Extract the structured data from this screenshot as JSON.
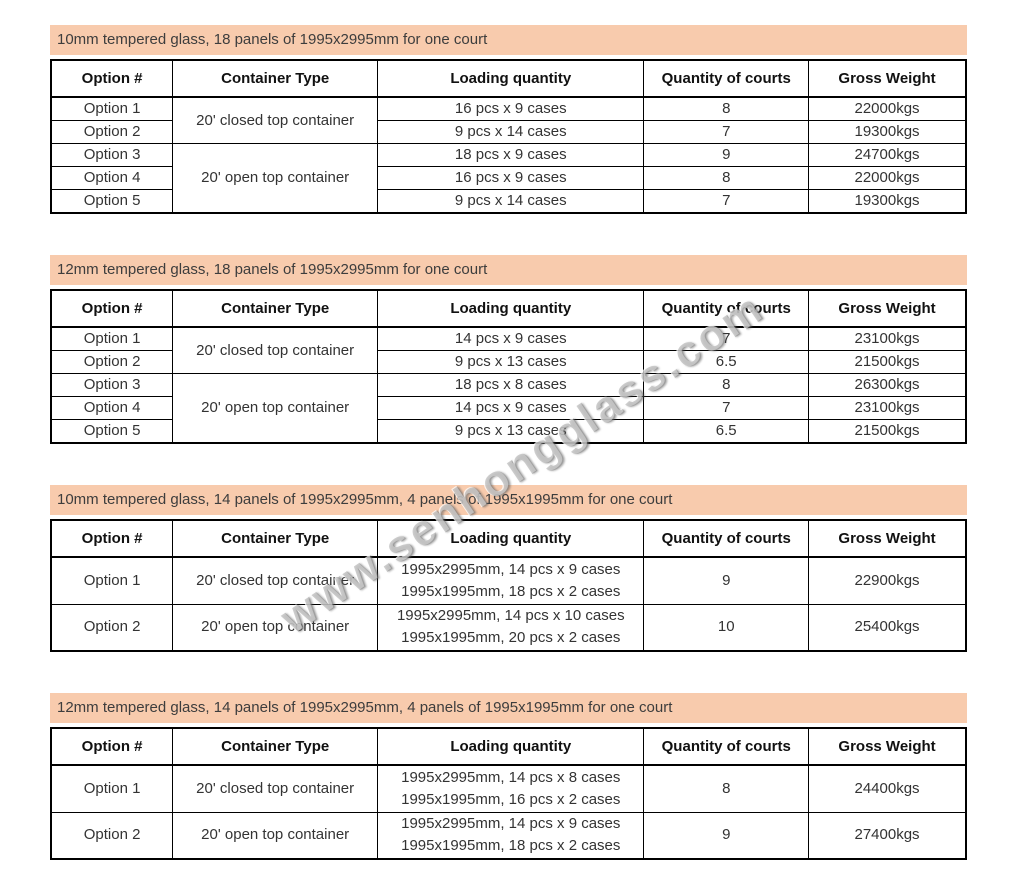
{
  "colors": {
    "banner_bg": "#F8CBAD",
    "border": "#000000",
    "body_text": "#333333",
    "banner_text": "#3d3d3d"
  },
  "watermark": {
    "text": "www.senhongglass.com"
  },
  "columns": [
    "Option #",
    "Container Type",
    "Loading quantity",
    "Quantity of courts",
    "Gross Weight"
  ],
  "sections": [
    {
      "title": "10mm tempered glass, 18 panels of 1995x2995mm for one court",
      "rows": [
        {
          "option": "Option 1",
          "container": "20' closed top container",
          "container_rowspan": 2,
          "loading": [
            "16 pcs x 9 cases"
          ],
          "courts": "8",
          "weight": "22000kgs"
        },
        {
          "option": "Option 2",
          "loading": [
            "9 pcs x 14 cases"
          ],
          "courts": "7",
          "weight": "19300kgs"
        },
        {
          "option": "Option 3",
          "container": "20' open top container",
          "container_rowspan": 3,
          "loading": [
            "18 pcs x 9 cases"
          ],
          "courts": "9",
          "weight": "24700kgs"
        },
        {
          "option": "Option 4",
          "loading": [
            "16 pcs x 9 cases"
          ],
          "courts": "8",
          "weight": "22000kgs"
        },
        {
          "option": "Option 5",
          "loading": [
            "9 pcs x 14 cases"
          ],
          "courts": "7",
          "weight": "19300kgs"
        }
      ]
    },
    {
      "title": "12mm tempered glass, 18 panels of 1995x2995mm for one court",
      "rows": [
        {
          "option": "Option 1",
          "container": "20' closed top container",
          "container_rowspan": 2,
          "loading": [
            "14 pcs x 9 cases"
          ],
          "courts": "7",
          "weight": "23100kgs"
        },
        {
          "option": "Option 2",
          "loading": [
            "9 pcs x 13 cases"
          ],
          "courts": "6.5",
          "weight": "21500kgs"
        },
        {
          "option": "Option 3",
          "container": "20' open top container",
          "container_rowspan": 3,
          "loading": [
            "18 pcs x 8 cases"
          ],
          "courts": "8",
          "weight": "26300kgs"
        },
        {
          "option": "Option 4",
          "loading": [
            "14 pcs x 9 cases"
          ],
          "courts": "7",
          "weight": "23100kgs"
        },
        {
          "option": "Option 5",
          "loading": [
            "9 pcs x 13 cases"
          ],
          "courts": "6.5",
          "weight": "21500kgs"
        }
      ]
    },
    {
      "title": "10mm tempered glass, 14 panels of 1995x2995mm, 4 panels of 1995x1995mm for one court",
      "rows": [
        {
          "option": "Option 1",
          "container": "20' closed top container",
          "container_rowspan": 1,
          "loading": [
            "1995x2995mm, 14 pcs x 9 cases",
            "1995x1995mm, 18 pcs x 2 cases"
          ],
          "courts": "9",
          "weight": "22900kgs"
        },
        {
          "option": "Option 2",
          "container": "20' open top container",
          "container_rowspan": 1,
          "loading": [
            "1995x2995mm, 14 pcs x 10 cases",
            "1995x1995mm, 20 pcs x 2 cases"
          ],
          "courts": "10",
          "weight": "25400kgs"
        }
      ]
    },
    {
      "title": "12mm tempered glass, 14 panels of 1995x2995mm, 4 panels of 1995x1995mm for one court",
      "rows": [
        {
          "option": "Option 1",
          "container": "20' closed top container",
          "container_rowspan": 1,
          "loading": [
            "1995x2995mm, 14 pcs x 8 cases",
            "1995x1995mm, 16 pcs x 2 cases"
          ],
          "courts": "8",
          "weight": "24400kgs"
        },
        {
          "option": "Option 2",
          "container": "20' open top container",
          "container_rowspan": 1,
          "loading": [
            "1995x2995mm, 14 pcs x 9 cases",
            "1995x1995mm, 18 pcs x 2 cases"
          ],
          "courts": "9",
          "weight": "27400kgs"
        }
      ]
    }
  ]
}
